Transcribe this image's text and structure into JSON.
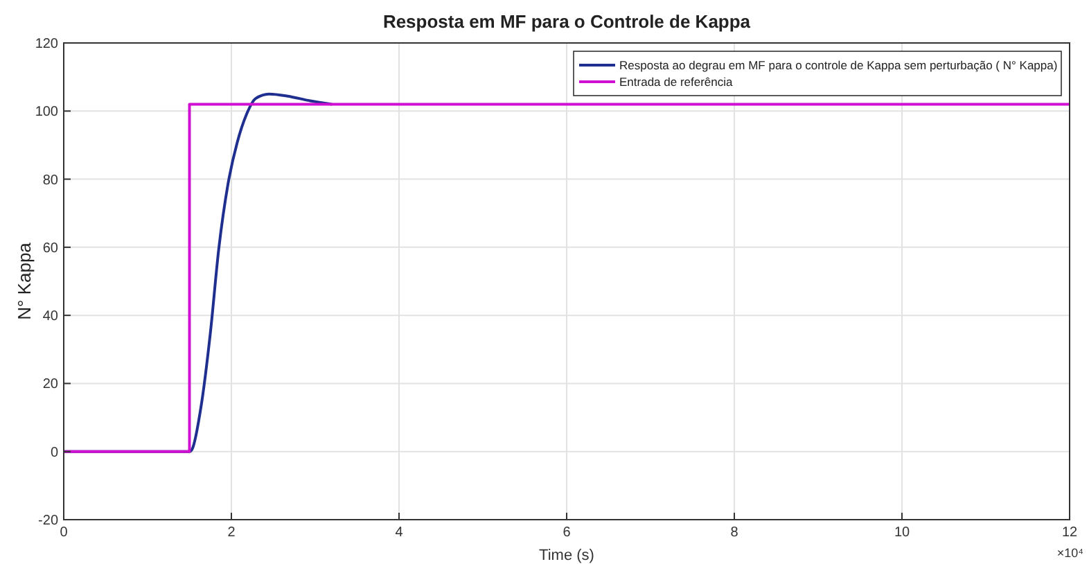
{
  "chart_data": {
    "type": "line",
    "title": "Resposta em MF para o Controle de Kappa",
    "xlabel": "Time (s)",
    "ylabel": "N° Kappa",
    "xlim": [
      0,
      12
    ],
    "ylim": [
      -20,
      120
    ],
    "xticks": [
      0,
      2,
      4,
      6,
      8,
      10,
      12
    ],
    "yticks": [
      -20,
      0,
      20,
      40,
      60,
      80,
      100,
      120
    ],
    "annotations": [
      "×10⁴"
    ],
    "grid": true,
    "legend": "top right",
    "line_style": "solid",
    "marker": "none",
    "series": [
      {
        "name": "Resposta ao degrau em MF para o controle de Kappa sem perturbação ( N° Kappa)",
        "color": "#1f2f8f",
        "x": [
          0,
          1.5,
          1.53,
          1.64,
          1.75,
          1.85,
          1.96,
          2.07,
          2.18,
          2.29,
          2.45,
          2.67,
          2.94,
          3.2
        ],
        "values": [
          0,
          0,
          0.6,
          13.5,
          35,
          59.6,
          78.6,
          90.8,
          99,
          103.7,
          105,
          104.4,
          103,
          102
        ]
      },
      {
        "name": "Entrada de referência",
        "color": "#d010d0",
        "type": "step",
        "x": [
          0,
          1.5,
          12
        ],
        "values": [
          0,
          102,
          102
        ]
      }
    ]
  }
}
